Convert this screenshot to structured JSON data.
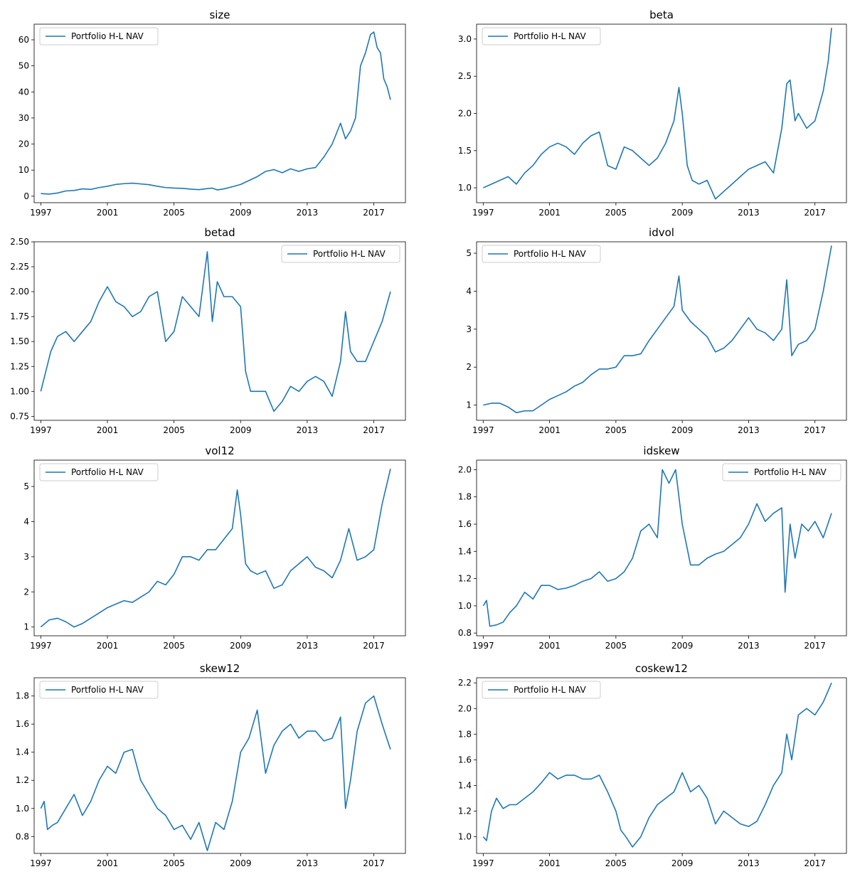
{
  "figure": {
    "legend_label": "Portfolio H-L NAV",
    "line_color": "#1f77b4"
  },
  "chart_data": [
    {
      "type": "line",
      "title": "size",
      "xlabel": "",
      "ylabel": "",
      "xlim": [
        1996.6,
        2018.9
      ],
      "ylim": [
        -2.5,
        66
      ],
      "xticks": [
        1997,
        2001,
        2005,
        2009,
        2013,
        2017
      ],
      "yticks": [
        0,
        10,
        20,
        30,
        40,
        50,
        60
      ],
      "ytick_decimals": 0,
      "legend": "upper left",
      "series": [
        {
          "name": "Portfolio H-L NAV",
          "x": [
            1997.0,
            1997.5,
            1998.0,
            1998.5,
            1999.0,
            1999.5,
            2000.0,
            2000.5,
            2001.0,
            2001.5,
            2002.0,
            2002.5,
            2003.0,
            2003.5,
            2004.0,
            2004.5,
            2005.0,
            2005.5,
            2006.0,
            2006.5,
            2007.0,
            2007.3,
            2007.6,
            2008.0,
            2008.5,
            2009.0,
            2009.5,
            2010.0,
            2010.5,
            2011.0,
            2011.5,
            2012.0,
            2012.5,
            2013.0,
            2013.5,
            2014.0,
            2014.5,
            2015.0,
            2015.3,
            2015.6,
            2015.9,
            2016.2,
            2016.5,
            2016.8,
            2017.0,
            2017.2,
            2017.4,
            2017.6,
            2017.8,
            2018.0
          ],
          "y": [
            1,
            0.8,
            1.2,
            2,
            2.2,
            2.8,
            2.6,
            3.3,
            3.8,
            4.5,
            4.8,
            5.0,
            4.7,
            4.4,
            3.8,
            3.3,
            3.1,
            3.0,
            2.7,
            2.5,
            2.9,
            3.1,
            2.4,
            2.8,
            3.6,
            4.5,
            6.0,
            7.5,
            9.5,
            10.2,
            9.0,
            10.5,
            9.5,
            10.5,
            11,
            15,
            20,
            28,
            22,
            25,
            30,
            50,
            55,
            62,
            63,
            57,
            55,
            45,
            42,
            37
          ]
        }
      ]
    },
    {
      "type": "line",
      "title": "beta",
      "xlabel": "",
      "ylabel": "",
      "xlim": [
        1996.6,
        2018.9
      ],
      "ylim": [
        0.8,
        3.2
      ],
      "xticks": [
        1997,
        2001,
        2005,
        2009,
        2013,
        2017
      ],
      "yticks": [
        1.0,
        1.5,
        2.0,
        2.5,
        3.0
      ],
      "ytick_decimals": 1,
      "legend": "upper left",
      "series": [
        {
          "name": "Portfolio H-L NAV",
          "x": [
            1997.0,
            1997.5,
            1998.0,
            1998.5,
            1999.0,
            1999.5,
            2000.0,
            2000.5,
            2001.0,
            2001.5,
            2002.0,
            2002.5,
            2003.0,
            2003.5,
            2004.0,
            2004.5,
            2005.0,
            2005.5,
            2006.0,
            2006.5,
            2007.0,
            2007.5,
            2008.0,
            2008.5,
            2008.8,
            2009.0,
            2009.3,
            2009.6,
            2010.0,
            2010.5,
            2011.0,
            2011.5,
            2012.0,
            2012.5,
            2013.0,
            2013.5,
            2014.0,
            2014.5,
            2015.0,
            2015.3,
            2015.5,
            2015.8,
            2016.0,
            2016.5,
            2017.0,
            2017.5,
            2017.8,
            2018.0
          ],
          "y": [
            1,
            1.05,
            1.1,
            1.15,
            1.05,
            1.2,
            1.3,
            1.45,
            1.55,
            1.6,
            1.55,
            1.45,
            1.6,
            1.7,
            1.75,
            1.3,
            1.25,
            1.55,
            1.5,
            1.4,
            1.3,
            1.4,
            1.6,
            1.9,
            2.35,
            2.0,
            1.3,
            1.1,
            1.05,
            1.1,
            0.85,
            0.95,
            1.05,
            1.15,
            1.25,
            1.3,
            1.35,
            1.2,
            1.8,
            2.4,
            2.45,
            1.9,
            2.0,
            1.8,
            1.9,
            2.3,
            2.7,
            3.15
          ]
        }
      ]
    },
    {
      "type": "line",
      "title": "betad",
      "xlabel": "",
      "ylabel": "",
      "xlim": [
        1996.6,
        2018.9
      ],
      "ylim": [
        0.71,
        2.5
      ],
      "xticks": [
        1997,
        2001,
        2005,
        2009,
        2013,
        2017
      ],
      "yticks": [
        0.75,
        1.0,
        1.25,
        1.5,
        1.75,
        2.0,
        2.25,
        2.5
      ],
      "ytick_decimals": 2,
      "legend": "upper right",
      "series": [
        {
          "name": "Portfolio H-L NAV",
          "x": [
            1997.0,
            1997.3,
            1997.6,
            1998.0,
            1998.5,
            1999.0,
            1999.5,
            2000.0,
            2000.5,
            2001.0,
            2001.5,
            2002.0,
            2002.5,
            2003.0,
            2003.5,
            2004.0,
            2004.5,
            2005.0,
            2005.5,
            2006.0,
            2006.5,
            2007.0,
            2007.3,
            2007.6,
            2008.0,
            2008.5,
            2009.0,
            2009.3,
            2009.6,
            2010.0,
            2010.5,
            2011.0,
            2011.5,
            2012.0,
            2012.5,
            2013.0,
            2013.5,
            2014.0,
            2014.5,
            2015.0,
            2015.3,
            2015.6,
            2016.0,
            2016.5,
            2017.0,
            2017.5,
            2018.0
          ],
          "y": [
            1,
            1.2,
            1.4,
            1.55,
            1.6,
            1.5,
            1.6,
            1.7,
            1.9,
            2.05,
            1.9,
            1.85,
            1.75,
            1.8,
            1.95,
            2.0,
            1.5,
            1.6,
            1.95,
            1.85,
            1.75,
            2.4,
            1.7,
            2.1,
            1.95,
            1.95,
            1.85,
            1.2,
            1.0,
            1.0,
            1.0,
            0.8,
            0.9,
            1.05,
            1.0,
            1.1,
            1.15,
            1.1,
            0.95,
            1.3,
            1.8,
            1.4,
            1.3,
            1.3,
            1.5,
            1.7,
            2.0
          ]
        }
      ]
    },
    {
      "type": "line",
      "title": "idvol",
      "xlabel": "",
      "ylabel": "",
      "xlim": [
        1996.6,
        2018.9
      ],
      "ylim": [
        0.6,
        5.3
      ],
      "xticks": [
        1997,
        2001,
        2005,
        2009,
        2013,
        2017
      ],
      "yticks": [
        1,
        2,
        3,
        4,
        5
      ],
      "ytick_decimals": 0,
      "legend": "upper left",
      "series": [
        {
          "name": "Portfolio H-L NAV",
          "x": [
            1997.0,
            1997.5,
            1998.0,
            1998.5,
            1999.0,
            1999.5,
            2000.0,
            2000.5,
            2001.0,
            2001.5,
            2002.0,
            2002.5,
            2003.0,
            2003.5,
            2004.0,
            2004.5,
            2005.0,
            2005.5,
            2006.0,
            2006.5,
            2007.0,
            2007.5,
            2008.0,
            2008.5,
            2008.8,
            2009.0,
            2009.5,
            2010.0,
            2010.5,
            2011.0,
            2011.5,
            2012.0,
            2012.5,
            2013.0,
            2013.5,
            2014.0,
            2014.5,
            2015.0,
            2015.3,
            2015.6,
            2016.0,
            2016.5,
            2017.0,
            2017.5,
            2018.0
          ],
          "y": [
            1,
            1.05,
            1.05,
            0.95,
            0.8,
            0.85,
            0.85,
            1.0,
            1.15,
            1.25,
            1.35,
            1.5,
            1.6,
            1.8,
            1.95,
            1.95,
            2.0,
            2.3,
            2.3,
            2.35,
            2.7,
            3.0,
            3.3,
            3.6,
            4.4,
            3.5,
            3.2,
            3.0,
            2.8,
            2.4,
            2.5,
            2.7,
            3.0,
            3.3,
            3.0,
            2.9,
            2.7,
            3.0,
            4.3,
            2.3,
            2.6,
            2.7,
            3.0,
            4.0,
            5.2
          ]
        }
      ]
    },
    {
      "type": "line",
      "title": "vol12",
      "xlabel": "",
      "ylabel": "",
      "xlim": [
        1996.6,
        2018.9
      ],
      "ylim": [
        0.75,
        5.75
      ],
      "xticks": [
        1997,
        2001,
        2005,
        2009,
        2013,
        2017
      ],
      "yticks": [
        1,
        2,
        3,
        4,
        5
      ],
      "ytick_decimals": 0,
      "legend": "upper left",
      "series": [
        {
          "name": "Portfolio H-L NAV",
          "x": [
            1997.0,
            1997.5,
            1998.0,
            1998.5,
            1999.0,
            1999.5,
            2000.0,
            2000.5,
            2001.0,
            2001.5,
            2002.0,
            2002.5,
            2003.0,
            2003.5,
            2004.0,
            2004.5,
            2005.0,
            2005.5,
            2006.0,
            2006.5,
            2007.0,
            2007.5,
            2008.0,
            2008.5,
            2008.8,
            2009.0,
            2009.3,
            2009.6,
            2010.0,
            2010.5,
            2011.0,
            2011.5,
            2012.0,
            2012.5,
            2013.0,
            2013.5,
            2014.0,
            2014.5,
            2015.0,
            2015.5,
            2016.0,
            2016.5,
            2017.0,
            2017.5,
            2018.0
          ],
          "y": [
            1,
            1.2,
            1.25,
            1.15,
            1.0,
            1.1,
            1.25,
            1.4,
            1.55,
            1.65,
            1.75,
            1.7,
            1.85,
            2.0,
            2.3,
            2.2,
            2.5,
            3.0,
            3.0,
            2.9,
            3.2,
            3.2,
            3.5,
            3.8,
            4.9,
            4.2,
            2.8,
            2.6,
            2.5,
            2.6,
            2.1,
            2.2,
            2.6,
            2.8,
            3.0,
            2.7,
            2.6,
            2.4,
            2.9,
            3.8,
            2.9,
            3.0,
            3.2,
            4.5,
            5.5
          ]
        }
      ]
    },
    {
      "type": "line",
      "title": "idskew",
      "xlabel": "",
      "ylabel": "",
      "xlim": [
        1996.6,
        2018.9
      ],
      "ylim": [
        0.78,
        2.07
      ],
      "xticks": [
        1997,
        2001,
        2005,
        2009,
        2013,
        2017
      ],
      "yticks": [
        0.8,
        1.0,
        1.2,
        1.4,
        1.6,
        1.8,
        2.0
      ],
      "ytick_decimals": 1,
      "legend": "upper right",
      "series": [
        {
          "name": "Portfolio H-L NAV",
          "x": [
            1997.0,
            1997.2,
            1997.4,
            1997.8,
            1998.2,
            1998.6,
            1999.0,
            1999.5,
            2000.0,
            2000.5,
            2001.0,
            2001.5,
            2002.0,
            2002.5,
            2003.0,
            2003.5,
            2004.0,
            2004.5,
            2005.0,
            2005.5,
            2006.0,
            2006.5,
            2007.0,
            2007.5,
            2007.8,
            2008.2,
            2008.6,
            2009.0,
            2009.5,
            2010.0,
            2010.5,
            2011.0,
            2011.5,
            2012.0,
            2012.5,
            2013.0,
            2013.5,
            2014.0,
            2014.5,
            2015.0,
            2015.2,
            2015.5,
            2015.8,
            2016.2,
            2016.6,
            2017.0,
            2017.5,
            2018.0
          ],
          "y": [
            1.0,
            1.04,
            0.85,
            0.86,
            0.88,
            0.95,
            1.0,
            1.1,
            1.05,
            1.15,
            1.15,
            1.12,
            1.13,
            1.15,
            1.18,
            1.2,
            1.25,
            1.18,
            1.2,
            1.25,
            1.35,
            1.55,
            1.6,
            1.5,
            2.0,
            1.9,
            2.0,
            1.6,
            1.3,
            1.3,
            1.35,
            1.38,
            1.4,
            1.45,
            1.5,
            1.6,
            1.75,
            1.62,
            1.68,
            1.72,
            1.1,
            1.6,
            1.35,
            1.6,
            1.55,
            1.62,
            1.5,
            1.68
          ]
        }
      ]
    },
    {
      "type": "line",
      "title": "skew12",
      "xlabel": "",
      "ylabel": "",
      "xlim": [
        1996.6,
        2018.9
      ],
      "ylim": [
        0.68,
        1.93
      ],
      "xticks": [
        1997,
        2001,
        2005,
        2009,
        2013,
        2017
      ],
      "yticks": [
        0.8,
        1.0,
        1.2,
        1.4,
        1.6,
        1.8
      ],
      "ytick_decimals": 1,
      "legend": "upper left",
      "series": [
        {
          "name": "Portfolio H-L NAV",
          "x": [
            1997.0,
            1997.2,
            1997.4,
            1997.7,
            1998.0,
            1998.5,
            1999.0,
            1999.5,
            2000.0,
            2000.5,
            2001.0,
            2001.5,
            2002.0,
            2002.5,
            2003.0,
            2003.5,
            2004.0,
            2004.5,
            2005.0,
            2005.5,
            2006.0,
            2006.5,
            2007.0,
            2007.5,
            2008.0,
            2008.5,
            2009.0,
            2009.5,
            2010.0,
            2010.5,
            2011.0,
            2011.5,
            2012.0,
            2012.5,
            2013.0,
            2013.5,
            2014.0,
            2014.5,
            2015.0,
            2015.3,
            2015.6,
            2016.0,
            2016.5,
            2017.0,
            2017.5,
            2018.0
          ],
          "y": [
            1.0,
            1.05,
            0.85,
            0.88,
            0.9,
            1.0,
            1.1,
            0.95,
            1.05,
            1.2,
            1.3,
            1.25,
            1.4,
            1.42,
            1.2,
            1.1,
            1.0,
            0.95,
            0.85,
            0.88,
            0.78,
            0.9,
            0.7,
            0.9,
            0.85,
            1.05,
            1.4,
            1.5,
            1.7,
            1.25,
            1.45,
            1.55,
            1.6,
            1.5,
            1.55,
            1.55,
            1.48,
            1.5,
            1.65,
            1.0,
            1.2,
            1.55,
            1.75,
            1.8,
            1.6,
            1.42
          ]
        }
      ]
    },
    {
      "type": "line",
      "title": "coskew12",
      "xlabel": "",
      "ylabel": "",
      "xlim": [
        1996.6,
        2018.9
      ],
      "ylim": [
        0.87,
        2.24
      ],
      "xticks": [
        1997,
        2001,
        2005,
        2009,
        2013,
        2017
      ],
      "yticks": [
        1.0,
        1.2,
        1.4,
        1.6,
        1.8,
        2.0,
        2.2
      ],
      "ytick_decimals": 1,
      "legend": "upper left",
      "series": [
        {
          "name": "Portfolio H-L NAV",
          "x": [
            1997.0,
            1997.2,
            1997.5,
            1997.8,
            1998.2,
            1998.6,
            1999.0,
            1999.5,
            2000.0,
            2000.5,
            2001.0,
            2001.5,
            2002.0,
            2002.5,
            2003.0,
            2003.5,
            2004.0,
            2004.5,
            2005.0,
            2005.3,
            2005.6,
            2006.0,
            2006.5,
            2007.0,
            2007.5,
            2008.0,
            2008.5,
            2009.0,
            2009.5,
            2010.0,
            2010.5,
            2011.0,
            2011.5,
            2012.0,
            2012.5,
            2013.0,
            2013.5,
            2014.0,
            2014.5,
            2015.0,
            2015.3,
            2015.6,
            2016.0,
            2016.5,
            2017.0,
            2017.5,
            2018.0
          ],
          "y": [
            1.0,
            0.97,
            1.2,
            1.3,
            1.22,
            1.25,
            1.25,
            1.3,
            1.35,
            1.42,
            1.5,
            1.45,
            1.48,
            1.48,
            1.45,
            1.45,
            1.48,
            1.35,
            1.2,
            1.05,
            1.0,
            0.92,
            1.0,
            1.15,
            1.25,
            1.3,
            1.35,
            1.5,
            1.35,
            1.4,
            1.3,
            1.1,
            1.2,
            1.15,
            1.1,
            1.08,
            1.12,
            1.25,
            1.4,
            1.5,
            1.8,
            1.6,
            1.95,
            2.0,
            1.95,
            2.05,
            2.2
          ]
        }
      ]
    }
  ]
}
